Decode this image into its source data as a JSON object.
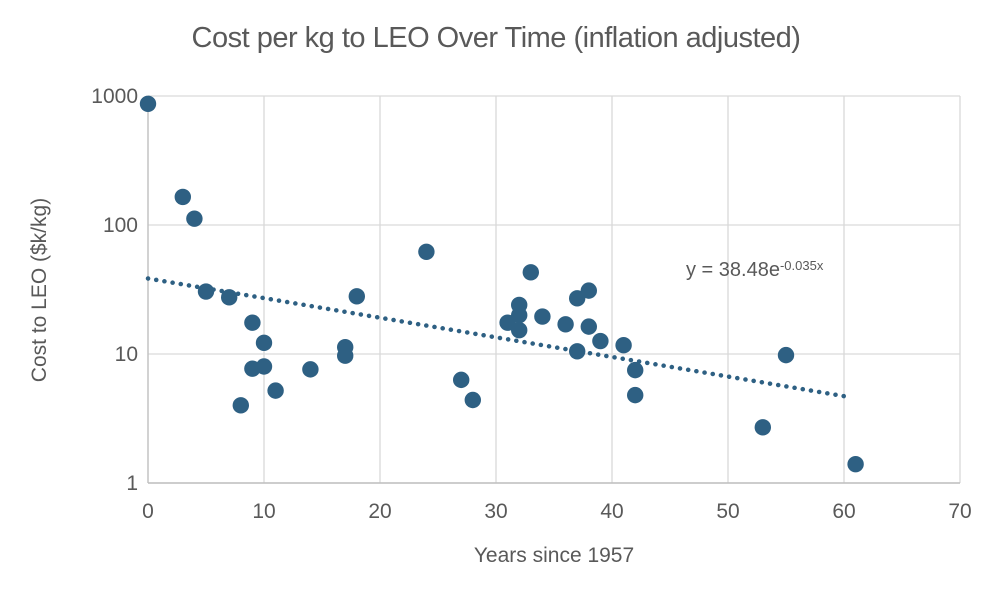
{
  "chart_data": {
    "type": "scatter",
    "title": "Cost per kg to LEO Over Time (inflation adjusted)",
    "xlabel": "Years since 1957",
    "ylabel": "Cost to LEO ($k/kg)",
    "x_scale": "linear",
    "y_scale": "log",
    "xlim": [
      0,
      70
    ],
    "ylim": [
      1,
      1000
    ],
    "x_ticks": [
      0,
      10,
      20,
      30,
      40,
      50,
      60,
      70
    ],
    "y_ticks": [
      1,
      10,
      100,
      1000
    ],
    "grid": true,
    "legend": "none",
    "points": [
      [
        0,
        870
      ],
      [
        3,
        165
      ],
      [
        4,
        112
      ],
      [
        5,
        30.5
      ],
      [
        7,
        27.5
      ],
      [
        8,
        4
      ],
      [
        9,
        17.5
      ],
      [
        9,
        7.7
      ],
      [
        10,
        12.2
      ],
      [
        10,
        8
      ],
      [
        11,
        5.2
      ],
      [
        14,
        7.6
      ],
      [
        17,
        11.3
      ],
      [
        17,
        9.7
      ],
      [
        18,
        28
      ],
      [
        24,
        62
      ],
      [
        27,
        6.3
      ],
      [
        28,
        4.4
      ],
      [
        31,
        17.5
      ],
      [
        32,
        24
      ],
      [
        32,
        20
      ],
      [
        32,
        15.3
      ],
      [
        33,
        43
      ],
      [
        34,
        19.5
      ],
      [
        36,
        17
      ],
      [
        37,
        27
      ],
      [
        37,
        10.5
      ],
      [
        38,
        31
      ],
      [
        38,
        16.3
      ],
      [
        39,
        12.6
      ],
      [
        41,
        11.7
      ],
      [
        42,
        7.5
      ],
      [
        42,
        4.8
      ],
      [
        53,
        2.7
      ],
      [
        55,
        9.8
      ],
      [
        61,
        1.4
      ]
    ],
    "trendline": {
      "equation_base": "y = 38.48e",
      "equation_exponent": "-0.035x",
      "a": 38.48,
      "b": -0.035,
      "x_start": 0,
      "x_end": 60,
      "style": "dotted"
    },
    "colors": {
      "marker": "#2E6083",
      "trend": "#2E6083",
      "grid": "#D9D9D9",
      "axis": "#BFBFBF",
      "text": "#595959"
    }
  }
}
